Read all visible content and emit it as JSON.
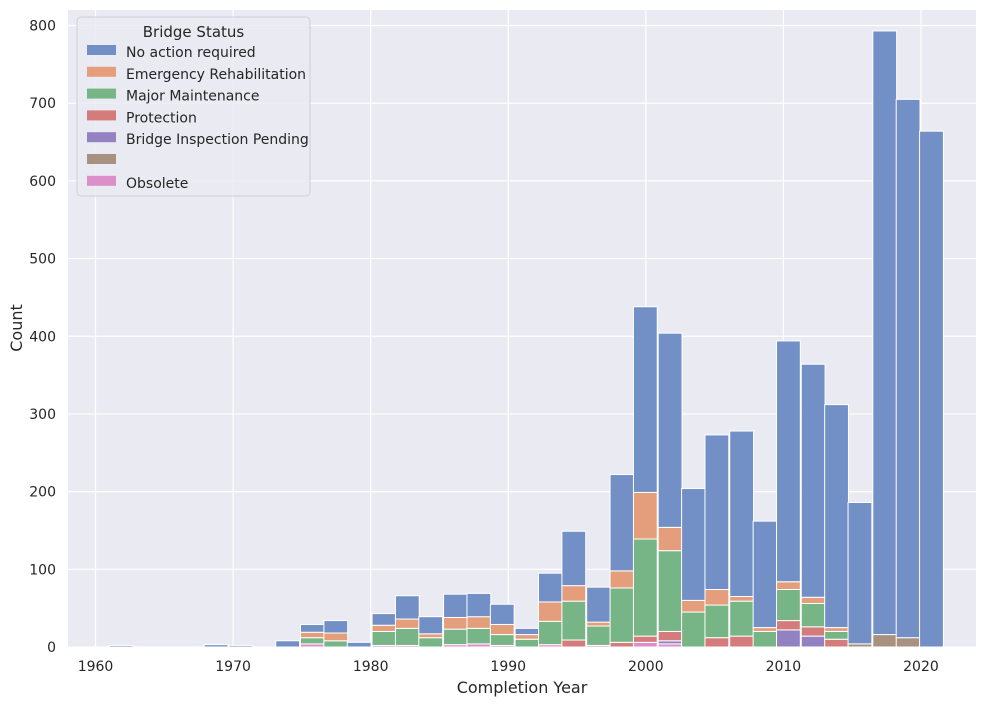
{
  "chart_data": {
    "type": "bar",
    "stacked": true,
    "xlabel": "Completion Year",
    "ylabel": "Count",
    "xlim": [
      1958,
      2024
    ],
    "ylim": [
      0,
      820
    ],
    "xticks": [
      1960,
      1970,
      1980,
      1990,
      2000,
      2010,
      2020
    ],
    "yticks": [
      0,
      100,
      200,
      300,
      400,
      500,
      600,
      700,
      800
    ],
    "grid": true,
    "legend": {
      "title": "Bridge Status",
      "position": "upper-left"
    },
    "bin_starts": [
      1961.0,
      1962.7,
      1964.5,
      1966.2,
      1967.9,
      1969.7,
      1971.4,
      1973.1,
      1974.9,
      1976.6,
      1978.3,
      1980.1,
      1981.8,
      1983.5,
      1985.3,
      1987.0,
      1988.7,
      1990.5,
      1992.2,
      1993.9,
      1995.7,
      1997.4,
      1999.1,
      2000.9,
      2002.6,
      2004.3,
      2006.1,
      2007.8,
      2009.5,
      2011.3,
      2013.0,
      2014.7,
      2016.5,
      2018.2,
      2019.9
    ],
    "bin_width": 1.73,
    "series": [
      {
        "name": "Obsolete",
        "color": "#dd8fc9",
        "values": [
          0,
          0,
          0,
          0,
          0,
          0,
          0,
          0,
          4,
          0,
          0,
          2,
          2,
          0,
          3,
          4,
          2,
          0,
          3,
          0,
          2,
          0,
          6,
          4,
          0,
          0,
          0,
          0,
          0,
          0,
          0,
          0,
          0,
          0,
          0
        ]
      },
      {
        "name": "",
        "color": "#a89180",
        "values": [
          0,
          0,
          0,
          0,
          0,
          0,
          0,
          0,
          0,
          0,
          0,
          0,
          0,
          0,
          0,
          0,
          0,
          0,
          0,
          0,
          0,
          0,
          0,
          0,
          0,
          0,
          0,
          0,
          0,
          0,
          0,
          4,
          16,
          12,
          0
        ]
      },
      {
        "name": "Bridge Inspection Pending",
        "color": "#9382c2",
        "values": [
          0,
          0,
          0,
          0,
          0,
          0,
          0,
          0,
          0,
          0,
          0,
          0,
          0,
          0,
          0,
          0,
          0,
          0,
          0,
          0,
          0,
          0,
          0,
          4,
          0,
          0,
          0,
          0,
          22,
          14,
          0,
          0,
          0,
          0,
          0
        ]
      },
      {
        "name": "Protection",
        "color": "#d47c7c",
        "values": [
          0,
          0,
          0,
          0,
          0,
          0,
          0,
          0,
          0,
          0,
          0,
          0,
          0,
          0,
          0,
          0,
          0,
          0,
          0,
          9,
          0,
          6,
          8,
          12,
          0,
          12,
          14,
          0,
          12,
          12,
          10,
          0,
          0,
          0,
          0
        ]
      },
      {
        "name": "Major Maintenance",
        "color": "#78b586",
        "values": [
          0,
          0,
          0,
          0,
          0,
          0,
          0,
          0,
          8,
          8,
          0,
          18,
          22,
          12,
          20,
          20,
          14,
          10,
          30,
          50,
          25,
          70,
          125,
          104,
          45,
          42,
          45,
          20,
          40,
          30,
          10,
          0,
          0,
          0,
          0
        ]
      },
      {
        "name": "Emergency Rehabilitation",
        "color": "#e59e7c",
        "values": [
          0,
          0,
          0,
          0,
          0,
          0,
          0,
          0,
          7,
          10,
          0,
          8,
          12,
          5,
          15,
          15,
          13,
          6,
          25,
          20,
          5,
          22,
          60,
          30,
          15,
          20,
          6,
          5,
          10,
          8,
          5,
          0,
          0,
          0,
          0
        ]
      },
      {
        "name": "No action required",
        "color": "#7290c5",
        "values": [
          2,
          0,
          0,
          0,
          3,
          2,
          0,
          8,
          10,
          16,
          6,
          15,
          30,
          22,
          30,
          30,
          26,
          8,
          37,
          70,
          45,
          124,
          239,
          250,
          144,
          199,
          213,
          137,
          310,
          300,
          287,
          182,
          777,
          693,
          664
        ]
      }
    ],
    "bar_totals": [
      2,
      0,
      0,
      0,
      3,
      2,
      0,
      8,
      29,
      34,
      6,
      43,
      66,
      39,
      68,
      69,
      55,
      24,
      95,
      149,
      77,
      222,
      438,
      404,
      204,
      273,
      278,
      162,
      394,
      364,
      312,
      186,
      793,
      705,
      664
    ],
    "legend_order": [
      "No action required",
      "Emergency Rehabilitation",
      "Major Maintenance",
      "Protection",
      "Bridge Inspection Pending",
      "",
      "Obsolete"
    ]
  }
}
